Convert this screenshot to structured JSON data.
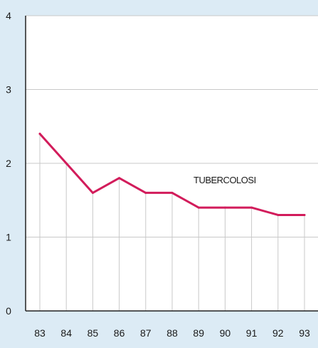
{
  "chart_data": {
    "type": "line",
    "categories": [
      "83",
      "84",
      "85",
      "86",
      "87",
      "88",
      "89",
      "90",
      "91",
      "92",
      "93"
    ],
    "series": [
      {
        "values": [
          2.4,
          2.0,
          1.6,
          1.8,
          1.6,
          1.6,
          1.4,
          1.4,
          1.4,
          1.3,
          1.3
        ]
      }
    ],
    "annotations": [
      {
        "text": "TUBERCOLOSI"
      }
    ],
    "title": "",
    "xlabel": "",
    "ylabel": "",
    "ylim": [
      0,
      4
    ],
    "yticks": [
      "0",
      "1",
      "2",
      "3",
      "4"
    ],
    "grid": true,
    "colors": {
      "background": "#dcebf5",
      "plot_background": "#ffffff",
      "line": "#d21c5b",
      "axis": "#222222",
      "grid": "#c9c9c9"
    }
  }
}
